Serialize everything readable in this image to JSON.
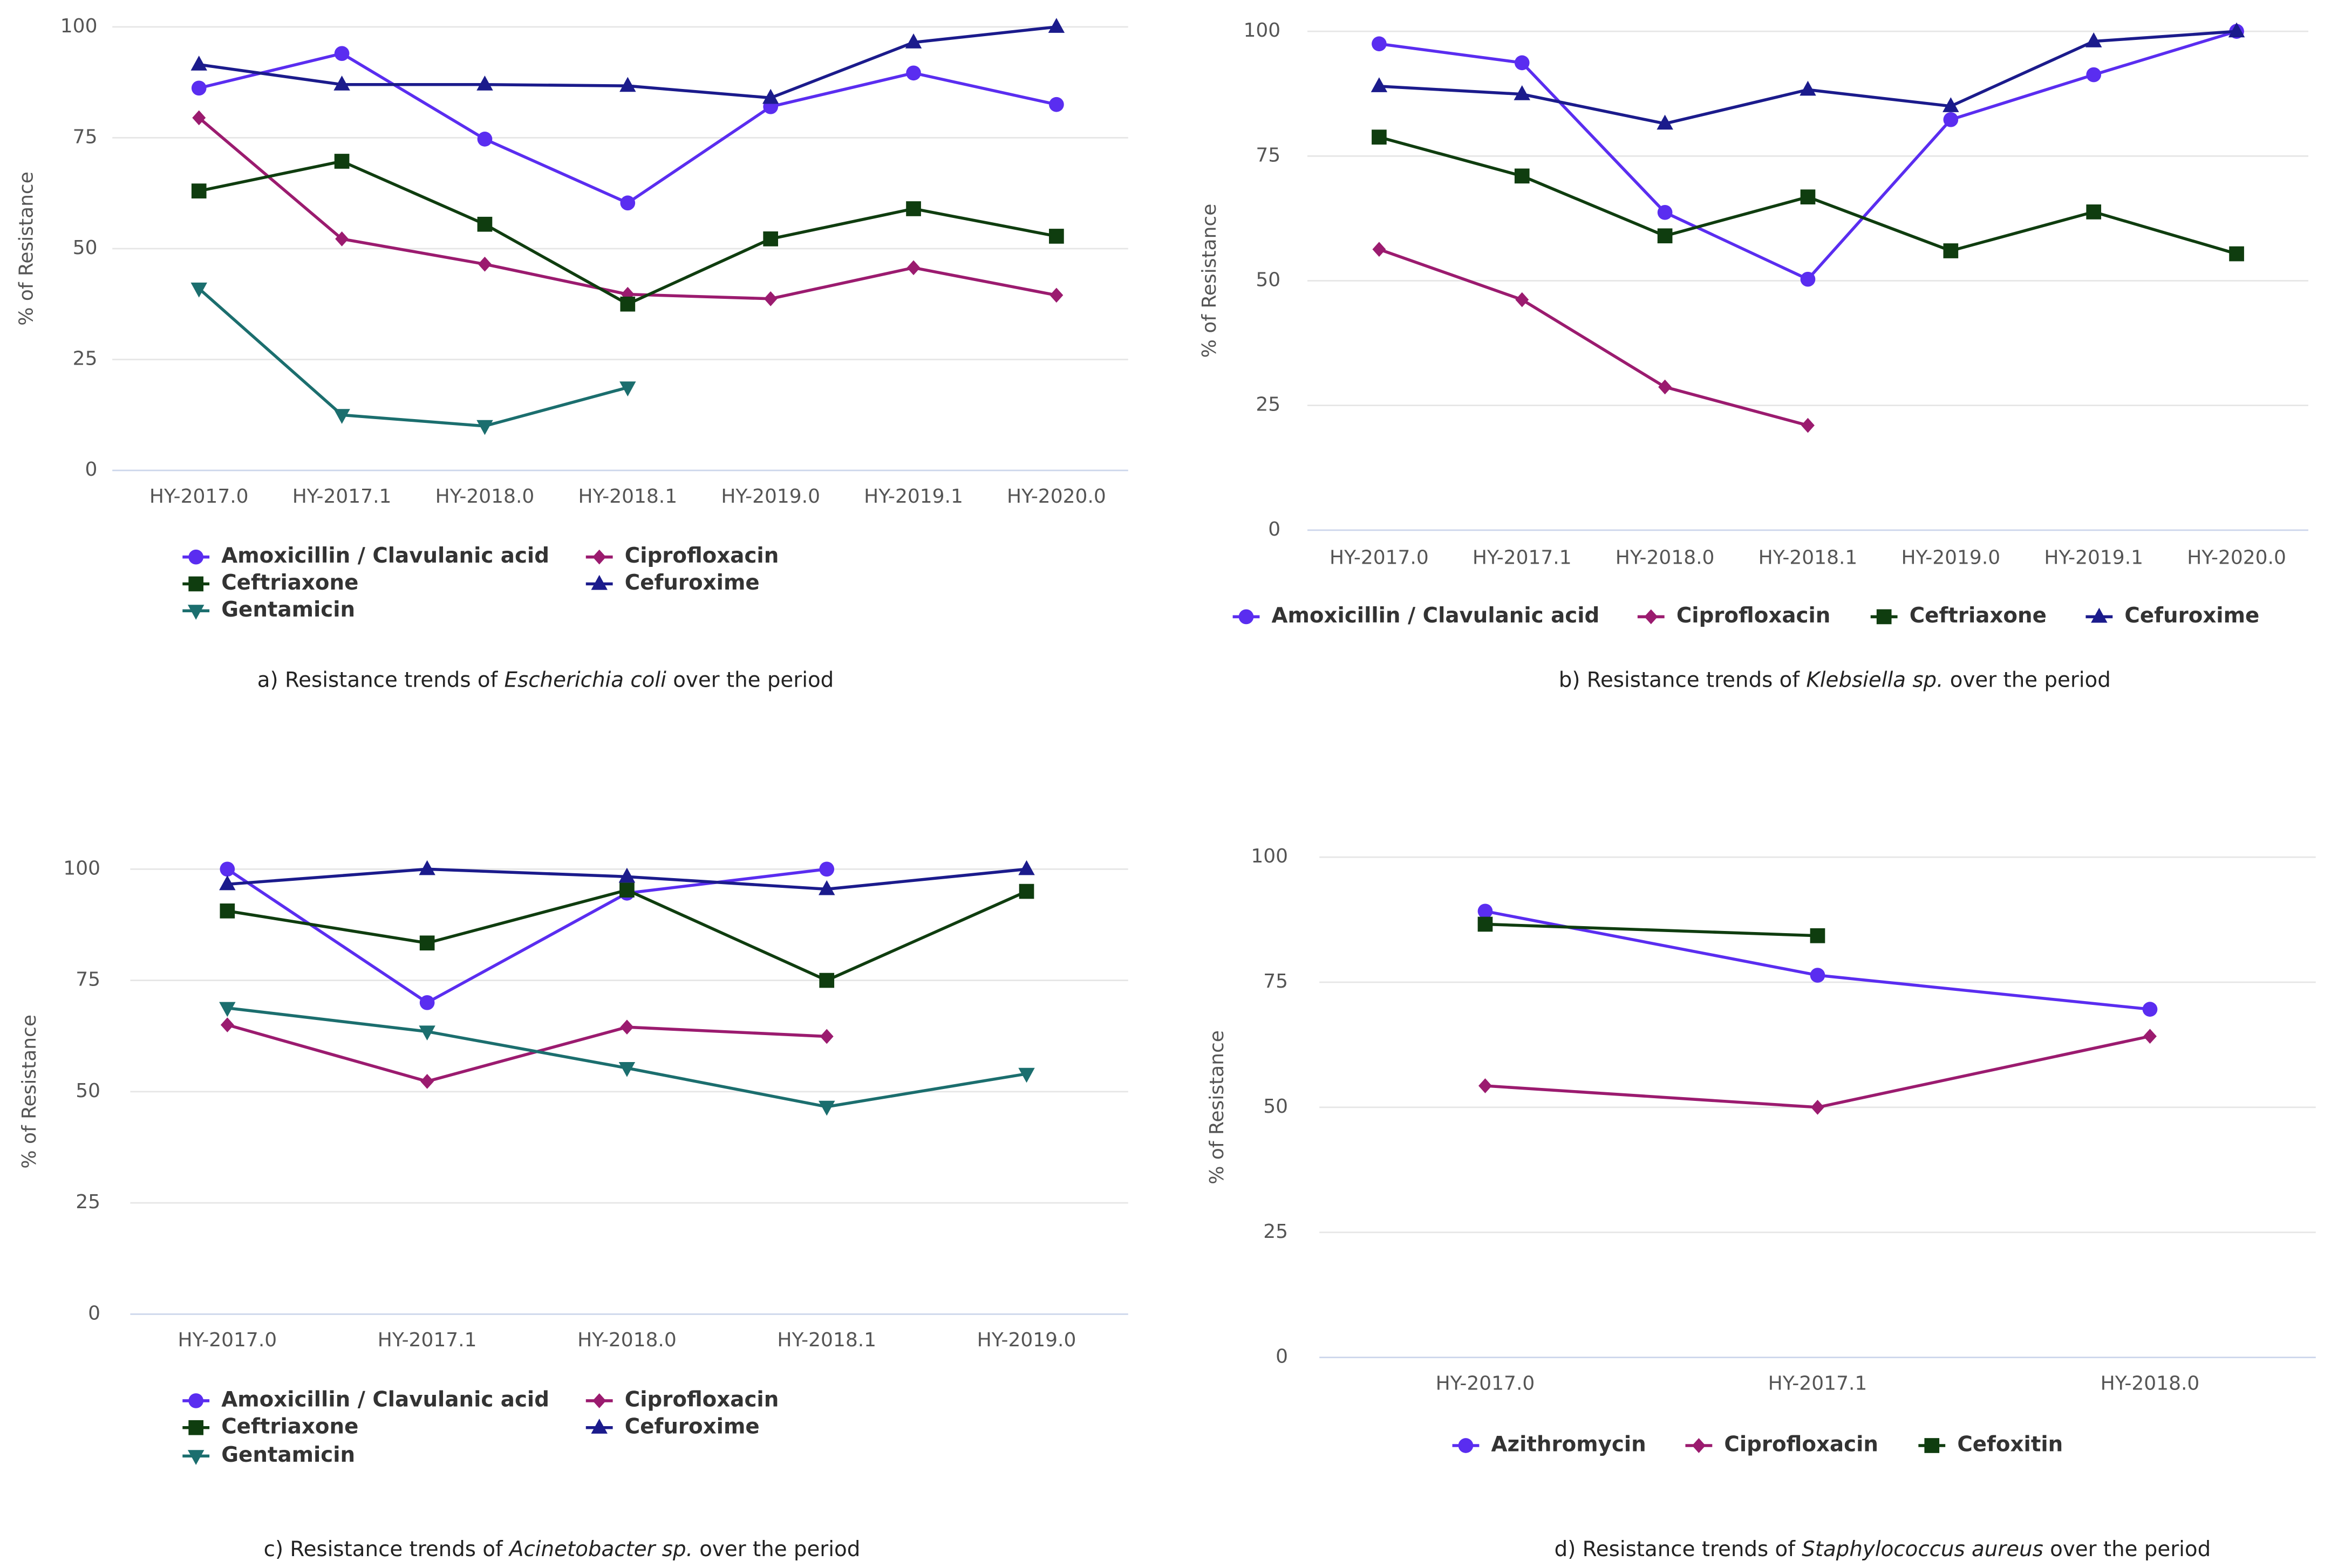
{
  "chart_data": [
    {
      "type": "line",
      "y_label": "% of Resistance",
      "caption": {
        "before": "a) Resistance trends of ",
        "species": "Escherichia coli",
        "after": " over the period"
      },
      "categories": [
        "HY-2017.0",
        "HY-2017.1",
        "HY-2018.0",
        "HY-2018.1",
        "HY-2019.0",
        "HY-2019.1",
        "HY-2020.0"
      ],
      "ylim": [
        0,
        100
      ],
      "yticks": [
        0,
        25,
        50,
        75,
        100
      ],
      "grid": true,
      "series": [
        {
          "name": "Amoxicillin / Clavulanic acid",
          "color": "#5a2df0",
          "marker": "circle",
          "values": [
            86.2,
            94,
            74.7,
            60.3,
            82,
            89.6,
            82.5
          ]
        },
        {
          "name": "Ciprofloxacin",
          "color": "#9b1b6f",
          "marker": "diamond",
          "values": [
            79.5,
            52.2,
            46.5,
            39.7,
            38.7,
            45.7,
            39.5
          ]
        },
        {
          "name": "Ceftriaxone",
          "color": "#0f3d0f",
          "marker": "square",
          "values": [
            63,
            69.7,
            55.5,
            37.5,
            52.2,
            59,
            52.8
          ]
        },
        {
          "name": "Cefuroxime",
          "color": "#1b1b8c",
          "marker": "triangle",
          "values": [
            91.5,
            87,
            87,
            86.7,
            84,
            96.5,
            100
          ]
        },
        {
          "name": "Gentamicin",
          "color": "#1b6e6e",
          "marker": "triangle-down",
          "values": [
            41,
            12.5,
            10,
            18.7,
            null,
            null,
            null
          ]
        }
      ]
    },
    {
      "type": "line",
      "y_label": "% of Resistance",
      "caption": {
        "before": "b) Resistance trends of ",
        "species": "Klebsiella sp.",
        "after": " over the period"
      },
      "categories": [
        "HY-2017.0",
        "HY-2017.1",
        "HY-2018.0",
        "HY-2018.1",
        "HY-2019.0",
        "HY-2019.1",
        "HY-2020.0"
      ],
      "ylim": [
        0,
        100
      ],
      "yticks": [
        0,
        25,
        50,
        75,
        100
      ],
      "grid": true,
      "series": [
        {
          "name": "Amoxicillin / Clavulanic acid",
          "color": "#5a2df0",
          "marker": "circle",
          "values": [
            97.5,
            93.7,
            63.7,
            50.3,
            82.3,
            91.3,
            100
          ]
        },
        {
          "name": "Ciprofloxacin",
          "color": "#9b1b6f",
          "marker": "diamond",
          "values": [
            56.3,
            46.2,
            28.7,
            21,
            null,
            null,
            null
          ]
        },
        {
          "name": "Ceftriaxone",
          "color": "#0f3d0f",
          "marker": "square",
          "values": [
            78.8,
            71,
            59,
            66.8,
            56,
            63.8,
            55.4
          ]
        },
        {
          "name": "Cefuroxime",
          "color": "#1b1b8c",
          "marker": "triangle",
          "values": [
            89,
            87.4,
            81.5,
            88.3,
            85,
            98,
            100
          ]
        }
      ]
    },
    {
      "type": "line",
      "y_label": "% of Resistance",
      "caption": {
        "before": "c) Resistance trends of ",
        "species": "Acinetobacter sp.",
        "after": " over the period"
      },
      "categories": [
        "HY-2017.0",
        "HY-2017.1",
        "HY-2018.0",
        "HY-2018.1",
        "HY-2019.0"
      ],
      "ylim": [
        0,
        100
      ],
      "yticks": [
        0,
        25,
        50,
        75,
        100
      ],
      "grid": true,
      "series": [
        {
          "name": "Amoxicillin / Clavulanic acid",
          "color": "#5a2df0",
          "marker": "circle",
          "values": [
            100,
            70,
            94.6,
            100,
            null
          ]
        },
        {
          "name": "Ciprofloxacin",
          "color": "#9b1b6f",
          "marker": "diamond",
          "values": [
            65,
            52.3,
            64.5,
            62.4,
            null
          ]
        },
        {
          "name": "Ceftriaxone",
          "color": "#0f3d0f",
          "marker": "square",
          "values": [
            90.6,
            83.4,
            95.3,
            75,
            95
          ]
        },
        {
          "name": "Cefuroxime",
          "color": "#1b1b8c",
          "marker": "triangle",
          "values": [
            96.6,
            100,
            98.3,
            95.5,
            100
          ]
        },
        {
          "name": "Gentamicin",
          "color": "#1b6e6e",
          "marker": "triangle-down",
          "values": [
            68.8,
            63.5,
            55.3,
            46.6,
            54
          ]
        }
      ]
    },
    {
      "type": "line",
      "y_label": "% of Resistance",
      "caption": {
        "before": "d) Resistance trends of ",
        "species": "Staphylococcus aureus",
        "after": " over the period"
      },
      "categories": [
        "HY-2017.0",
        "HY-2017.1",
        "HY-2018.0"
      ],
      "ylim": [
        0,
        100
      ],
      "yticks": [
        0,
        25,
        50,
        75,
        100
      ],
      "grid": true,
      "series": [
        {
          "name": "Azithromycin",
          "color": "#5a2df0",
          "marker": "circle",
          "values": [
            89.2,
            76.4,
            69.6
          ]
        },
        {
          "name": "Ciprofloxacin",
          "color": "#9b1b6f",
          "marker": "diamond",
          "values": [
            54.3,
            50,
            64.2
          ]
        },
        {
          "name": "Cefoxitin",
          "color": "#0f3d0f",
          "marker": "square",
          "values": [
            86.6,
            84.3,
            null
          ]
        }
      ]
    }
  ]
}
